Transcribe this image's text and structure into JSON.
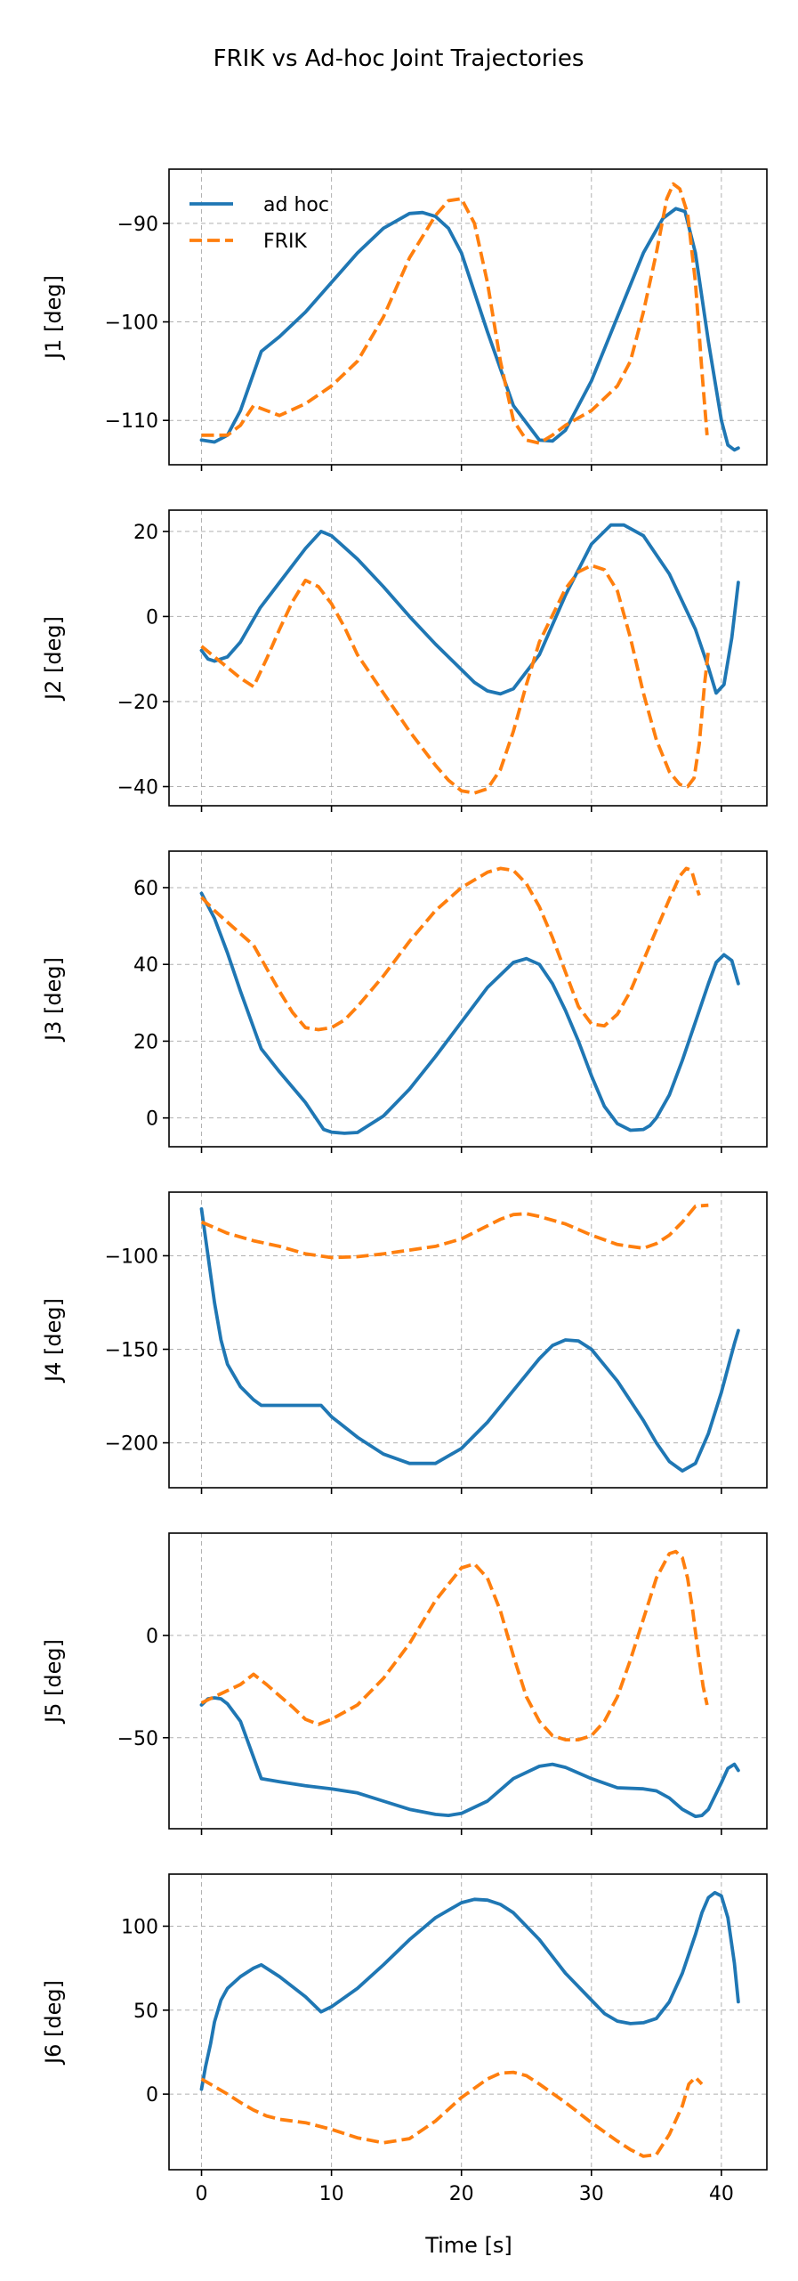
{
  "figure": {
    "title": "FRIK vs Ad-hoc Joint Trajectories",
    "xlabel": "Time [s]"
  },
  "legend": {
    "location": "upper-left of first panel",
    "entries": [
      "ad hoc",
      "FRIK"
    ]
  },
  "colors": {
    "ad_hoc": "#1f77b4",
    "frik": "#ff7f0e",
    "grid": "#b0b0b0"
  },
  "chart_data": [
    {
      "type": "line",
      "ylabel": "J1 [deg]",
      "xlim": [
        -2.5,
        43.5
      ],
      "ylim": [
        -114.5,
        -84.5
      ],
      "xticks": [
        0,
        10,
        20,
        30,
        40
      ],
      "yticks": [
        -110,
        -100,
        -90
      ],
      "ytick_labels": [
        "−110",
        "−100",
        "−90"
      ],
      "grid": true,
      "show_xticklabels": false,
      "series": [
        {
          "name": "ad hoc",
          "style": "solid",
          "x": [
            0,
            1,
            2,
            3,
            4.6,
            6,
            8,
            10,
            12,
            14,
            16,
            17,
            18,
            19,
            20,
            22,
            24,
            26,
            27,
            28,
            30,
            32,
            34,
            35.5,
            36.5,
            37.2,
            38,
            39,
            40,
            40.5,
            41,
            41.3
          ],
          "y": [
            -112,
            -112.2,
            -111.5,
            -109,
            -103,
            -101.5,
            -99,
            -96,
            -93,
            -90.5,
            -89,
            -88.9,
            -89.3,
            -90.5,
            -93,
            -101,
            -108.5,
            -112,
            -112.1,
            -111,
            -106,
            -99.5,
            -93,
            -89.5,
            -88.5,
            -88.8,
            -93,
            -102,
            -110,
            -112.5,
            -113,
            -112.8
          ]
        },
        {
          "name": "FRIK",
          "style": "dashed",
          "x": [
            0,
            1,
            2,
            3,
            4,
            5,
            6,
            8,
            10,
            12,
            14,
            16,
            18,
            19,
            20,
            21,
            22,
            23,
            24,
            25,
            26,
            27,
            28,
            30,
            32,
            33,
            34,
            35,
            35.8,
            36.3,
            36.8,
            37.4,
            38,
            38.5,
            38.9
          ],
          "y": [
            -111.5,
            -111.5,
            -111.5,
            -110.5,
            -108.5,
            -109,
            -109.5,
            -108.3,
            -106.5,
            -104,
            -99.5,
            -93.5,
            -89.2,
            -87.7,
            -87.5,
            -90,
            -96,
            -104,
            -110,
            -112,
            -112.3,
            -111.5,
            -110.5,
            -109,
            -106.5,
            -104,
            -99,
            -93,
            -87.5,
            -86,
            -86.5,
            -89,
            -96,
            -105,
            -111.5
          ]
        }
      ]
    },
    {
      "type": "line",
      "ylabel": "J2 [deg]",
      "xlim": [
        -2.5,
        43.5
      ],
      "ylim": [
        -44.5,
        25
      ],
      "xticks": [
        0,
        10,
        20,
        30,
        40
      ],
      "yticks": [
        -40,
        -20,
        0,
        20
      ],
      "ytick_labels": [
        "−40",
        "−20",
        "0",
        "20"
      ],
      "grid": true,
      "show_xticklabels": false,
      "series": [
        {
          "name": "ad hoc",
          "style": "solid",
          "x": [
            0,
            0.5,
            1,
            2,
            3,
            4.5,
            6,
            8,
            9.2,
            10,
            12,
            14,
            16,
            18,
            20,
            21,
            22,
            23,
            24,
            26,
            28,
            30,
            31.5,
            32.5,
            34,
            36,
            38,
            39,
            39.6,
            40.2,
            40.8,
            41.3
          ],
          "y": [
            -8,
            -10,
            -10.5,
            -9.5,
            -6,
            2,
            8,
            16,
            20,
            19,
            13.5,
            7,
            0,
            -6.5,
            -12.5,
            -15.5,
            -17.5,
            -18.2,
            -17,
            -9,
            5,
            17,
            21.5,
            21.5,
            19,
            10,
            -3,
            -12,
            -18,
            -16,
            -5,
            8
          ]
        },
        {
          "name": "FRIK",
          "style": "dashed",
          "x": [
            0,
            1,
            2,
            3,
            4,
            5,
            6,
            7,
            8,
            9,
            10,
            11,
            12,
            14,
            16,
            18,
            19,
            20,
            21,
            22,
            23,
            24,
            25,
            26,
            28,
            29,
            30,
            31,
            32,
            33,
            34,
            35,
            36,
            36.8,
            37.4,
            37.9,
            38.3,
            38.7,
            39
          ],
          "y": [
            -7,
            -9.5,
            -12,
            -14.5,
            -16.5,
            -10,
            -3,
            3.5,
            8.5,
            7,
            3,
            -2.5,
            -9,
            -18,
            -27,
            -35,
            -38.5,
            -41,
            -41.5,
            -40.5,
            -36,
            -27,
            -16,
            -6,
            6.5,
            10.5,
            12,
            11,
            6,
            -5,
            -18,
            -29,
            -36.5,
            -39.5,
            -40,
            -38,
            -30,
            -16,
            -8
          ]
        }
      ]
    },
    {
      "type": "line",
      "ylabel": "J3 [deg]",
      "xlim": [
        -2.5,
        43.5
      ],
      "ylim": [
        -7.5,
        69.5
      ],
      "xticks": [
        0,
        10,
        20,
        30,
        40
      ],
      "yticks": [
        0,
        20,
        40,
        60
      ],
      "ytick_labels": [
        "0",
        "20",
        "40",
        "60"
      ],
      "grid": true,
      "show_xticklabels": false,
      "series": [
        {
          "name": "ad hoc",
          "style": "solid",
          "x": [
            0,
            1,
            2,
            3,
            4.6,
            6,
            8,
            9.4,
            10,
            11,
            12,
            14,
            16,
            18,
            20,
            22,
            24,
            25,
            26,
            27,
            28,
            29,
            30,
            31,
            32,
            33,
            34,
            34.5,
            35,
            36,
            37,
            38,
            39,
            39.6,
            40.2,
            40.8,
            41.3
          ],
          "y": [
            58.5,
            52,
            43,
            33,
            18,
            12,
            4,
            -3,
            -3.7,
            -4,
            -3.8,
            0.5,
            7.5,
            16,
            25,
            34,
            40.5,
            41.5,
            40,
            35,
            28,
            20,
            11,
            3,
            -1.5,
            -3.2,
            -3,
            -2,
            0,
            6,
            15,
            25,
            35,
            40.5,
            42.5,
            41,
            35
          ]
        },
        {
          "name": "FRIK",
          "style": "dashed",
          "x": [
            0,
            1,
            2,
            3,
            4,
            5,
            6,
            7,
            8,
            9,
            10,
            11,
            12,
            14,
            16,
            18,
            20,
            22,
            23,
            24,
            25,
            26,
            27,
            28,
            29,
            30,
            31,
            32,
            33,
            34,
            35,
            36,
            36.8,
            37.3,
            37.7,
            38,
            38.3
          ],
          "y": [
            57.5,
            54,
            51,
            48,
            45,
            39,
            33,
            27.5,
            23.5,
            23,
            23.5,
            25.5,
            29,
            37,
            46,
            54,
            60,
            64,
            65,
            64.5,
            61,
            55,
            47,
            38,
            29,
            24.5,
            24,
            27,
            33,
            41,
            49,
            57,
            63,
            65,
            64.5,
            61,
            58
          ]
        }
      ]
    },
    {
      "type": "line",
      "ylabel": "J4 [deg]",
      "xlim": [
        -2.5,
        43.5
      ],
      "ylim": [
        -224,
        -66
      ],
      "xticks": [
        0,
        10,
        20,
        30,
        40
      ],
      "yticks": [
        -200,
        -150,
        -100
      ],
      "ytick_labels": [
        "−200",
        "−150",
        "−100"
      ],
      "grid": true,
      "show_xticklabels": false,
      "series": [
        {
          "name": "ad hoc",
          "style": "solid",
          "x": [
            0,
            0.5,
            1,
            1.5,
            2,
            3,
            4,
            4.6,
            6,
            8,
            9.2,
            10,
            12,
            14,
            16,
            18,
            20,
            22,
            24,
            26,
            27,
            28,
            29,
            30,
            32,
            34,
            35,
            36,
            37,
            38,
            39,
            40,
            41,
            41.3
          ],
          "y": [
            -75,
            -100,
            -125,
            -145,
            -158,
            -170,
            -177,
            -180,
            -180,
            -180,
            -180,
            -186,
            -197,
            -206,
            -211,
            -211,
            -203,
            -189,
            -172,
            -155,
            -148,
            -145,
            -145.5,
            -150,
            -167,
            -188,
            -200,
            -210,
            -215,
            -211,
            -195,
            -173,
            -147,
            -140
          ]
        },
        {
          "name": "FRIK",
          "style": "dashed",
          "x": [
            0,
            2,
            4,
            6,
            8,
            10,
            12,
            14,
            16,
            18,
            20,
            22,
            23,
            24,
            25,
            26,
            28,
            30,
            32,
            34,
            35,
            36,
            37,
            38,
            39
          ],
          "y": [
            -82,
            -88,
            -92,
            -95,
            -99,
            -101,
            -100.5,
            -99,
            -97,
            -95,
            -91,
            -84,
            -80.5,
            -78,
            -77.5,
            -79,
            -83,
            -89,
            -94,
            -96,
            -93.5,
            -89,
            -82,
            -73.5,
            -73
          ]
        }
      ]
    },
    {
      "type": "line",
      "ylabel": "J5 [deg]",
      "xlim": [
        -2.5,
        43.5
      ],
      "ylim": [
        -94.5,
        50
      ],
      "xticks": [
        0,
        10,
        20,
        30,
        40
      ],
      "yticks": [
        -50,
        0
      ],
      "ytick_labels": [
        "−50",
        "0"
      ],
      "grid": true,
      "show_xticklabels": false,
      "series": [
        {
          "name": "ad hoc",
          "style": "solid",
          "x": [
            0,
            0.5,
            1,
            1.5,
            2,
            3,
            4.6,
            6,
            8,
            10,
            12,
            14,
            16,
            18,
            19,
            20,
            22,
            24,
            26,
            27,
            28,
            30,
            32,
            34,
            35,
            36,
            37,
            38,
            38.5,
            39,
            40,
            40.5,
            41,
            41.3
          ],
          "y": [
            -34,
            -31,
            -30.5,
            -31,
            -33.5,
            -42,
            -70,
            -71.5,
            -73.5,
            -75,
            -77,
            -81,
            -85,
            -87.5,
            -88,
            -87,
            -81,
            -70,
            -64,
            -63,
            -64.5,
            -70,
            -74.5,
            -75,
            -76,
            -79.5,
            -85,
            -88.5,
            -88,
            -85,
            -72,
            -65,
            -63,
            -66
          ]
        },
        {
          "name": "FRIK",
          "style": "dashed",
          "x": [
            0,
            1,
            2,
            3,
            4,
            5,
            6,
            7,
            8,
            9,
            10,
            12,
            14,
            16,
            18,
            20,
            21,
            22,
            23,
            24,
            25,
            26,
            27,
            28,
            29,
            30,
            31,
            32,
            33,
            34,
            35,
            36,
            36.5,
            37,
            37.4,
            37.8,
            38.2,
            38.6,
            38.9
          ],
          "y": [
            -33,
            -30,
            -27,
            -24,
            -19,
            -24,
            -29.5,
            -35,
            -41,
            -43.5,
            -41,
            -34,
            -21,
            -4,
            17,
            33,
            35,
            28,
            12,
            -10,
            -30,
            -42,
            -49,
            -51,
            -51,
            -49,
            -42,
            -30,
            -12,
            8,
            28,
            40,
            41,
            38,
            28,
            12,
            -8,
            -25,
            -34
          ]
        }
      ]
    },
    {
      "type": "line",
      "ylabel": "J6 [deg]",
      "xlim": [
        -2.5,
        43.5
      ],
      "ylim": [
        -45,
        131
      ],
      "xticks": [
        0,
        10,
        20,
        30,
        40
      ],
      "xtick_labels": [
        "0",
        "10",
        "20",
        "30",
        "40"
      ],
      "yticks": [
        0,
        50,
        100
      ],
      "ytick_labels": [
        "0",
        "50",
        "100"
      ],
      "grid": true,
      "show_xticklabels": true,
      "series": [
        {
          "name": "ad hoc",
          "style": "solid",
          "x": [
            0,
            0.3,
            0.7,
            1,
            1.5,
            2,
            3,
            4,
            4.6,
            6,
            8,
            9.2,
            10,
            12,
            14,
            16,
            18,
            20,
            21,
            22,
            23,
            24,
            26,
            28,
            30,
            31,
            32,
            33,
            34,
            35,
            36,
            37,
            38,
            38.5,
            39,
            39.5,
            40,
            40.5,
            41,
            41.3
          ],
          "y": [
            3,
            16,
            30,
            43,
            56,
            63,
            70,
            75,
            77,
            70,
            58,
            49,
            52,
            63,
            77,
            92,
            105,
            114,
            116,
            115.5,
            113,
            108,
            92,
            72,
            56,
            48,
            43.5,
            42,
            42.5,
            45,
            55,
            72,
            95,
            108,
            117,
            120,
            118,
            105,
            78,
            55
          ]
        },
        {
          "name": "FRIK",
          "style": "dashed",
          "x": [
            0,
            1,
            2,
            3,
            4,
            5,
            6,
            8,
            10,
            12,
            14,
            16,
            18,
            20,
            22,
            23,
            24,
            25,
            26,
            28,
            30,
            32,
            33,
            34,
            35,
            36,
            37,
            37.5,
            38,
            38.5
          ],
          "y": [
            9,
            4.5,
            0,
            -5,
            -9.5,
            -13,
            -15,
            -17,
            -21,
            -26,
            -29,
            -26.5,
            -16,
            -2,
            9,
            12.5,
            13,
            11,
            6,
            -5,
            -17,
            -28,
            -33,
            -37,
            -36,
            -24,
            -7,
            6,
            10,
            6
          ]
        }
      ]
    }
  ]
}
